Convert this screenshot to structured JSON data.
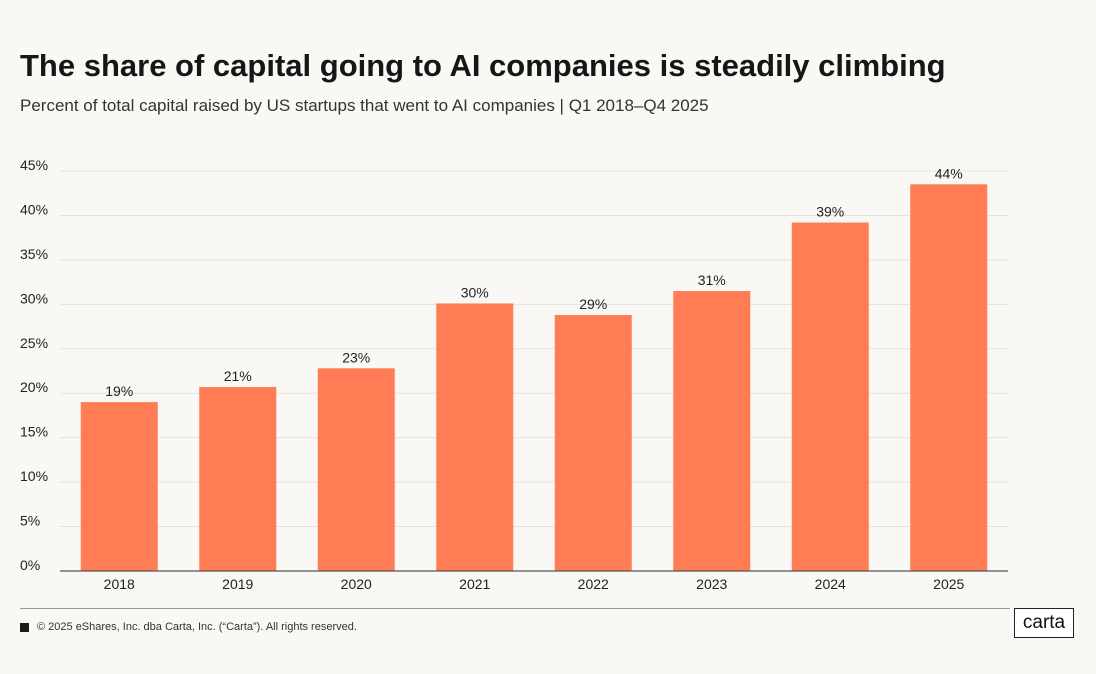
{
  "header": {
    "title": "The share of capital going to AI companies is steadily climbing",
    "subtitle": "Percent of total capital raised by US startups that went to AI companies | Q1 2018–Q4 2025"
  },
  "chart_data": {
    "type": "bar",
    "title": "",
    "xlabel": "",
    "ylabel": "",
    "categories": [
      "2018",
      "2019",
      "2020",
      "2021",
      "2022",
      "2023",
      "2024",
      "2025"
    ],
    "values": [
      19,
      20.7,
      22.8,
      30.1,
      28.8,
      31.5,
      39.2,
      43.5
    ],
    "value_labels": [
      "19%",
      "21%",
      "23%",
      "30%",
      "29%",
      "31%",
      "39%",
      "44%"
    ],
    "ylim": [
      0,
      45
    ],
    "yticks": [
      0,
      5,
      10,
      15,
      20,
      25,
      30,
      35,
      40,
      45
    ],
    "ytick_labels": [
      "0%",
      "5%",
      "10%",
      "15%",
      "20%",
      "25%",
      "30%",
      "35%",
      "40%",
      "45%"
    ],
    "grid": true,
    "bar_color": "#ff7c55"
  },
  "footer": {
    "copyright": "© 2025 eShares, Inc. dba Carta, Inc. (“Carta”). All rights reserved.",
    "logo_text": "carta"
  }
}
